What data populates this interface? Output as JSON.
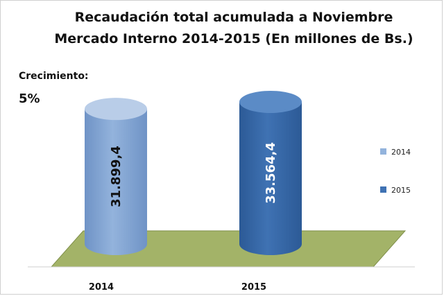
{
  "chart_data": {
    "type": "bar",
    "title_lines": [
      "Recaudación total acumulada a Noviembre",
      "Mercado Interno 2014-2015 (En millones de Bs.)"
    ],
    "categories": [
      "2014",
      "2015"
    ],
    "values": [
      31899.4,
      33564.4
    ],
    "value_labels": [
      "31.899,4",
      "33.564,4"
    ],
    "legend": [
      "2014",
      "2015"
    ],
    "legend_position": "right",
    "annotation_label": "Crecimiento:",
    "annotation_value": "5%",
    "ylim": [
      0,
      36000
    ],
    "grid": false,
    "colors": {
      "bar_2014": "#93b3dc",
      "bar_2014_dark": "#6f93c6",
      "bar_2015": "#3f72b3",
      "bar_2015_dark": "#2c5a96",
      "floor": "#a3b368",
      "floor_edge": "#7f8f4a"
    }
  }
}
